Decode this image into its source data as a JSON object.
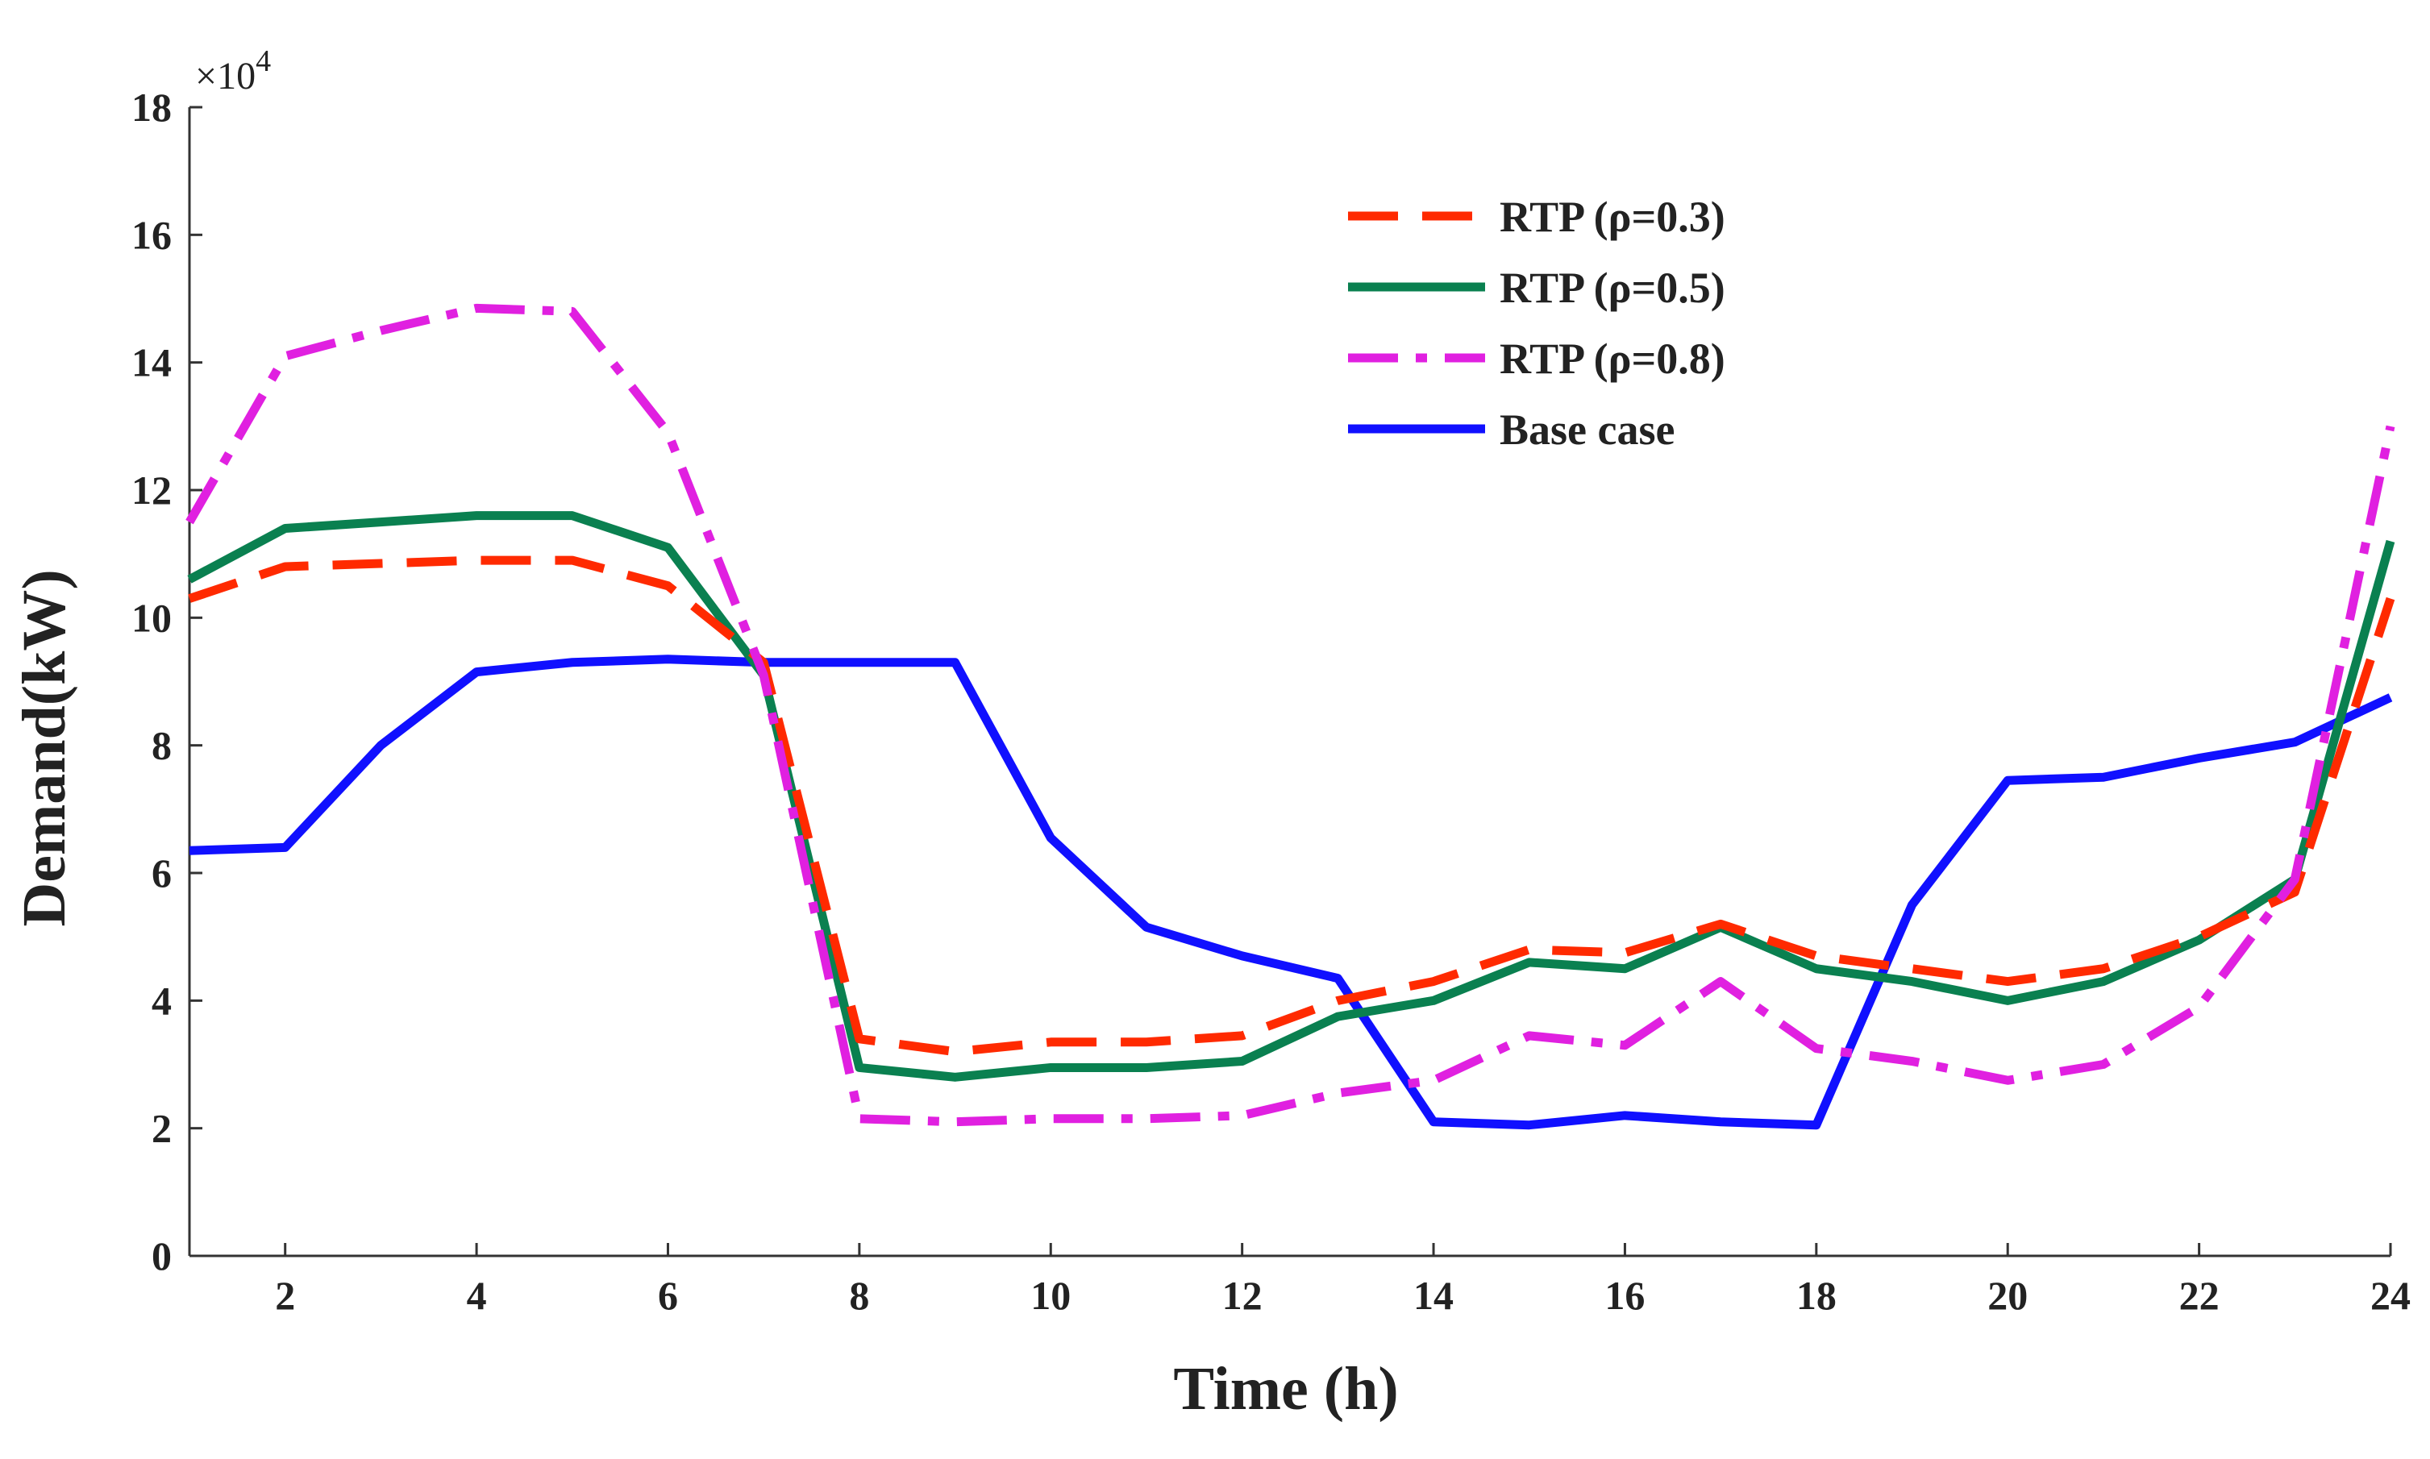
{
  "chart_data": {
    "type": "line",
    "title": "",
    "xlabel": "Time (h)",
    "ylabel": "Demand(kW)",
    "y_multiplier_label": "×10",
    "y_multiplier_exponent": "4",
    "xlim": [
      1,
      24
    ],
    "ylim": [
      0,
      18
    ],
    "x_ticks": [
      2,
      4,
      6,
      8,
      10,
      12,
      14,
      16,
      18,
      20,
      22,
      24
    ],
    "y_ticks": [
      0,
      2,
      4,
      6,
      8,
      10,
      12,
      14,
      16,
      18
    ],
    "grid": false,
    "legend_position": "top-right",
    "x": [
      1,
      2,
      3,
      4,
      5,
      6,
      7,
      8,
      9,
      10,
      11,
      12,
      13,
      14,
      15,
      16,
      17,
      18,
      19,
      20,
      21,
      22,
      23,
      24
    ],
    "series": [
      {
        "name": "RTP (ρ=0.3)",
        "color": "#ff2a00",
        "style": "dashed",
        "values": [
          10.3,
          10.8,
          10.85,
          10.9,
          10.9,
          10.5,
          9.3,
          3.4,
          3.2,
          3.35,
          3.35,
          3.45,
          4.0,
          4.3,
          4.8,
          4.75,
          5.2,
          4.7,
          4.5,
          4.3,
          4.5,
          5.0,
          5.7,
          10.3
        ]
      },
      {
        "name": "RTP (ρ=0.5)",
        "color": "#0a8050",
        "style": "solid",
        "values": [
          10.6,
          11.4,
          11.5,
          11.6,
          11.6,
          11.1,
          9.1,
          2.95,
          2.8,
          2.95,
          2.95,
          3.05,
          3.75,
          4.0,
          4.6,
          4.5,
          5.15,
          4.5,
          4.3,
          4.0,
          4.3,
          4.95,
          5.9,
          11.2
        ]
      },
      {
        "name": "RTP (ρ=0.8)",
        "color": "#e020e0",
        "style": "dashdot",
        "values": [
          11.5,
          14.1,
          14.5,
          14.85,
          14.8,
          12.9,
          9.1,
          2.15,
          2.1,
          2.15,
          2.15,
          2.2,
          2.55,
          2.75,
          3.45,
          3.3,
          4.3,
          3.25,
          3.05,
          2.75,
          3.0,
          3.9,
          5.9,
          13.0
        ]
      },
      {
        "name": "Base case",
        "color": "#1010ff",
        "style": "solid",
        "values": [
          6.35,
          6.4,
          8.0,
          9.15,
          9.3,
          9.35,
          9.3,
          9.3,
          9.3,
          6.55,
          5.15,
          4.7,
          4.35,
          2.1,
          2.05,
          2.2,
          2.1,
          2.05,
          5.5,
          7.45,
          7.5,
          7.8,
          8.05,
          8.75
        ]
      }
    ]
  }
}
